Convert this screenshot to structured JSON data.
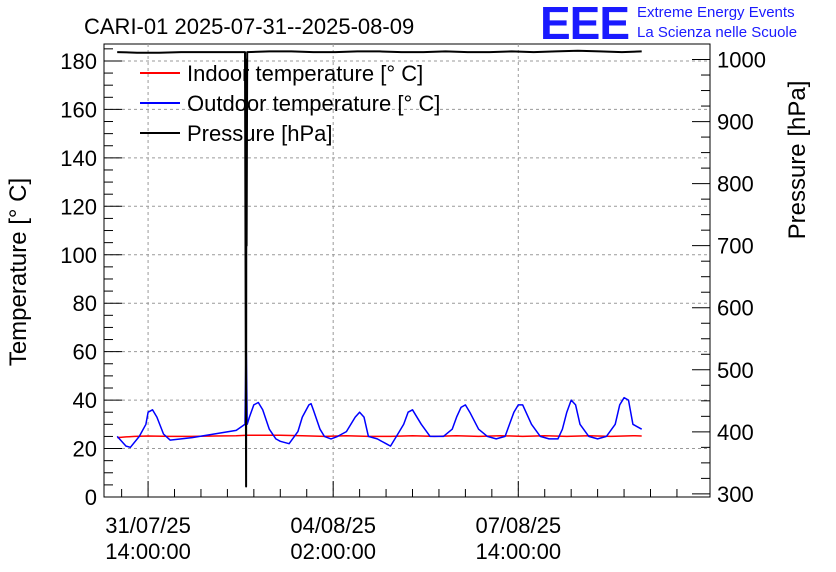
{
  "header": {
    "title": "CARI-01 2025-07-31--2025-08-09",
    "logo_mark": "EEE",
    "logo_line1": "Extreme Energy Events",
    "logo_line2": "La Scienza nelle Scuole"
  },
  "chart_data": {
    "type": "line",
    "title": "CARI-01 2025-07-31--2025-08-09",
    "ylabel": "Temperature [° C]",
    "y2label": "Pressure [hPa]",
    "ylim": [
      0,
      187
    ],
    "y2lim": [
      295,
      1025
    ],
    "y_ticks": [
      "0",
      "20",
      "40",
      "60",
      "80",
      "100",
      "120",
      "140",
      "160",
      "180"
    ],
    "y2_ticks": [
      "300",
      "400",
      "500",
      "600",
      "700",
      "800",
      "900",
      "1000"
    ],
    "xlim_hours": [
      -20,
      255
    ],
    "x_ticks": [
      {
        "hour": 0,
        "line1": "31/07/25",
        "line2": "14:00:00"
      },
      {
        "hour": 84,
        "line1": "04/08/25",
        "line2": "02:00:00"
      },
      {
        "hour": 168,
        "line1": "07/08/25",
        "line2": "14:00:00"
      }
    ],
    "grid": true,
    "legend_position": "top-left",
    "series": [
      {
        "name": "Indoor temperature [° C]",
        "color": "#ff0000",
        "axis": "left",
        "x": [
          -14,
          -10,
          -6,
          0,
          10,
          20,
          30,
          40,
          45,
          50,
          60,
          70,
          80,
          90,
          100,
          110,
          120,
          130,
          140,
          150,
          160,
          170,
          180,
          190,
          200,
          210,
          220,
          224
        ],
        "y": [
          24.5,
          24.8,
          25.0,
          25.2,
          25.0,
          25.0,
          25.2,
          25.3,
          25.5,
          25.5,
          25.5,
          25.3,
          25.0,
          25.3,
          25.0,
          25.0,
          25.3,
          25.0,
          25.3,
          25.0,
          25.3,
          25.0,
          25.3,
          25.0,
          25.3,
          25.0,
          25.3,
          25.2
        ]
      },
      {
        "name": "Outdoor temperature [° C]",
        "color": "#0000ff",
        "axis": "left",
        "x": [
          -14,
          -10,
          -8,
          -4,
          -1,
          0,
          2,
          4,
          7,
          10,
          20,
          30,
          40,
          44,
          44.5,
          45,
          46,
          48,
          50,
          52,
          55,
          58,
          60,
          64,
          68,
          70,
          73,
          74,
          75,
          78,
          80,
          83,
          86,
          90,
          94,
          96,
          98,
          100,
          104,
          108,
          110,
          112,
          114,
          116,
          118,
          120,
          124,
          128,
          134,
          138,
          140,
          142,
          144,
          146,
          150,
          154,
          158,
          162,
          164,
          166,
          168,
          170,
          174,
          178,
          182,
          186,
          188,
          190,
          192,
          194,
          196,
          200,
          204,
          208,
          212,
          214,
          216,
          218,
          220,
          224
        ],
        "y": [
          25,
          21,
          20.5,
          25,
          30,
          35,
          36,
          33,
          26,
          23.5,
          24.5,
          26,
          27.5,
          30,
          66,
          30,
          33,
          38,
          39,
          36,
          28,
          24,
          23,
          22,
          27,
          33,
          38,
          38.5,
          36,
          28,
          25,
          24,
          25,
          27,
          33,
          35,
          33,
          25,
          24,
          22,
          21,
          24,
          27,
          30,
          35,
          36,
          30,
          25,
          25,
          28,
          33,
          37,
          38,
          35,
          28,
          25,
          24,
          25,
          30,
          35,
          38,
          38,
          30,
          25,
          24,
          24,
          28,
          35,
          40,
          38,
          30,
          25,
          24,
          25,
          30,
          38,
          41,
          40,
          30,
          28
        ]
      },
      {
        "name": "Pressure [hPa]",
        "color": "#000000",
        "axis": "right",
        "x": [
          -14,
          -5,
          5,
          15,
          25,
          35,
          44,
          44.5,
          44.6,
          44.7,
          45,
          55,
          65,
          75,
          85,
          95,
          105,
          115,
          125,
          135,
          145,
          155,
          165,
          175,
          185,
          195,
          205,
          215,
          224
        ],
        "y": [
          1012,
          1011,
          1011,
          1012,
          1012,
          1012,
          1012,
          312,
          1000,
          700,
          1012,
          1013,
          1013,
          1012,
          1012,
          1013,
          1013,
          1012,
          1012,
          1013,
          1012,
          1012,
          1013,
          1012,
          1013,
          1014,
          1013,
          1012,
          1013
        ]
      }
    ]
  }
}
